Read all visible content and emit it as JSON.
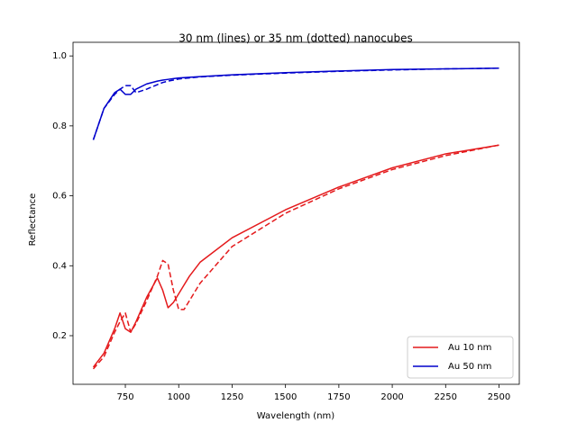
{
  "chart_data": {
    "type": "line",
    "title": "30 nm (lines) or 35 nm (dotted) nanocubes",
    "x_label": "Wavelength (nm)",
    "y_label": "Reflectance",
    "x": [
      600,
      650,
      700,
      725,
      750,
      775,
      800,
      850,
      900,
      925,
      950,
      975,
      1000,
      1025,
      1050,
      1100,
      1250,
      1500,
      1750,
      2000,
      2250,
      2500
    ],
    "series": [
      {
        "name": "Au 10 nm",
        "color": "#e41a1c",
        "values": [
          0.11,
          0.15,
          0.22,
          0.265,
          0.22,
          0.21,
          0.24,
          0.31,
          0.365,
          0.33,
          0.28,
          0.295,
          0.32,
          0.345,
          0.37,
          0.41,
          0.48,
          0.56,
          0.625,
          0.68,
          0.72,
          0.745
        ],
        "dashed_values": [
          0.105,
          0.14,
          0.21,
          0.24,
          0.265,
          0.21,
          0.235,
          0.3,
          0.37,
          0.415,
          0.405,
          0.33,
          0.275,
          0.275,
          0.3,
          0.35,
          0.455,
          0.55,
          0.62,
          0.675,
          0.715,
          0.745
        ]
      },
      {
        "name": "Au 50 nm",
        "color": "#0000cc",
        "values": [
          0.76,
          0.85,
          0.895,
          0.905,
          0.89,
          0.89,
          0.905,
          0.92,
          0.928,
          0.931,
          0.933,
          0.935,
          0.937,
          0.938,
          0.939,
          0.941,
          0.946,
          0.952,
          0.957,
          0.961,
          0.963,
          0.965
        ],
        "dashed_values": [
          0.76,
          0.85,
          0.89,
          0.905,
          0.915,
          0.915,
          0.895,
          0.905,
          0.918,
          0.924,
          0.928,
          0.931,
          0.934,
          0.936,
          0.937,
          0.94,
          0.945,
          0.951,
          0.956,
          0.96,
          0.963,
          0.965
        ]
      }
    ],
    "xlim": [
      505,
      2595
    ],
    "ylim": [
      0.061,
      1.039
    ],
    "xticks": [
      750,
      1000,
      1250,
      1500,
      1750,
      2000,
      2250,
      2500
    ],
    "yticks": [
      0.2,
      0.4,
      0.6,
      0.8,
      {
        "value": 1,
        "label": "1.0"
      }
    ],
    "legend": "lower right",
    "grid": false
  }
}
